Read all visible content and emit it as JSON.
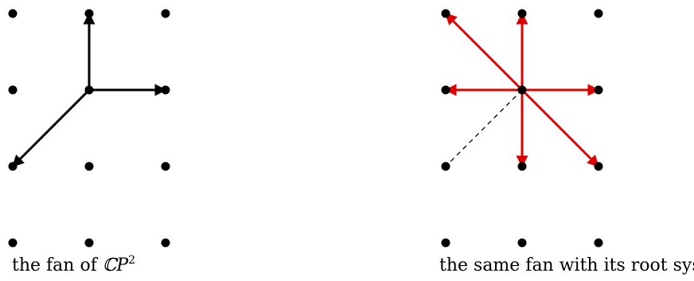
{
  "colors": {
    "ink": "#000000",
    "root": "#e00000"
  },
  "left": {
    "caption_text": "the fan of ",
    "caption_math_base": "ℂP",
    "caption_math_exp": "2",
    "lattice_points": [
      [
        -1,
        1
      ],
      [
        0,
        1
      ],
      [
        1,
        1
      ],
      [
        -1,
        0
      ],
      [
        0,
        0
      ],
      [
        1,
        0
      ],
      [
        -1,
        -1
      ],
      [
        0,
        -1
      ],
      [
        1,
        -1
      ],
      [
        -1,
        -2
      ],
      [
        0,
        -2
      ],
      [
        1,
        -2
      ]
    ],
    "rays": [
      [
        0,
        1
      ],
      [
        1,
        0
      ],
      [
        -1,
        -1
      ]
    ]
  },
  "right": {
    "caption": "the same fan with its root system",
    "lattice_points": [
      [
        -1,
        1
      ],
      [
        0,
        1
      ],
      [
        1,
        1
      ],
      [
        -1,
        0
      ],
      [
        0,
        0
      ],
      [
        1,
        0
      ],
      [
        -1,
        -1
      ],
      [
        0,
        -1
      ],
      [
        1,
        -1
      ],
      [
        -1,
        -2
      ],
      [
        0,
        -2
      ],
      [
        1,
        -2
      ]
    ],
    "dashed_rays": [
      [
        0,
        1
      ],
      [
        1,
        0
      ],
      [
        -1,
        -1
      ]
    ],
    "root_vectors": [
      [
        -1,
        1
      ],
      [
        0,
        1
      ],
      [
        -1,
        0
      ],
      [
        1,
        0
      ],
      [
        0,
        -1
      ],
      [
        1,
        -1
      ]
    ]
  }
}
